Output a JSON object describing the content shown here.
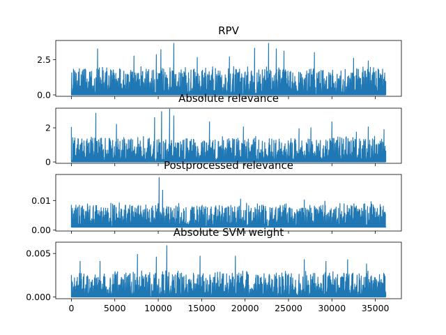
{
  "chart_data": [
    {
      "type": "line",
      "title": "RPV",
      "xlim": [
        -1800,
        38000
      ],
      "ylim": [
        -0.1,
        3.85
      ],
      "yticks": [
        0.0,
        2.5
      ],
      "ytick_labels": [
        "0.0",
        "2.5"
      ],
      "xticks": [
        0,
        5000,
        10000,
        15000,
        20000,
        25000,
        30000,
        35000
      ],
      "xtick_labels": [],
      "color": "#1f77b4",
      "x_range": [
        0,
        36200
      ],
      "baseline": 0.0,
      "typical_peak": 1.6,
      "peaks": [
        [
          3000,
          3.25
        ],
        [
          7200,
          2.75
        ],
        [
          9800,
          2.85
        ],
        [
          10300,
          3.2
        ],
        [
          11800,
          3.65
        ],
        [
          14500,
          2.65
        ],
        [
          18200,
          2.7
        ],
        [
          21100,
          3.3
        ],
        [
          22700,
          3.65
        ],
        [
          23600,
          3.25
        ],
        [
          24500,
          3.1
        ],
        [
          28000,
          3.0
        ],
        [
          32500,
          2.6
        ],
        [
          34200,
          2.4
        ]
      ]
    },
    {
      "type": "line",
      "title": "Absolute relevance",
      "xlim": [
        -1800,
        38000
      ],
      "ylim": [
        -0.08,
        3.15
      ],
      "yticks": [
        0,
        2
      ],
      "ytick_labels": [
        "0",
        "2"
      ],
      "xticks": [
        0,
        5000,
        10000,
        15000,
        20000,
        25000,
        30000,
        35000
      ],
      "xtick_labels": [],
      "color": "#1f77b4",
      "x_range": [
        0,
        36200
      ],
      "baseline": 0.0,
      "typical_peak": 1.2,
      "peaks": [
        [
          0,
          2.05
        ],
        [
          2800,
          2.85
        ],
        [
          5200,
          2.2
        ],
        [
          9600,
          2.6
        ],
        [
          10400,
          2.95
        ],
        [
          11300,
          3.1
        ],
        [
          11800,
          2.7
        ],
        [
          15900,
          2.35
        ],
        [
          19800,
          2.05
        ],
        [
          26200,
          1.95
        ],
        [
          27600,
          2.0
        ],
        [
          30000,
          2.35
        ],
        [
          32800,
          1.75
        ],
        [
          34200,
          2.05
        ],
        [
          36000,
          1.9
        ]
      ]
    },
    {
      "type": "line",
      "title": "Postprocessed relevance",
      "xlim": [
        -1800,
        38000
      ],
      "ylim": [
        -0.0003,
        0.0188
      ],
      "yticks": [
        0.0,
        0.01
      ],
      "ytick_labels": [
        "0.00",
        "0.01"
      ],
      "xticks": [
        0,
        5000,
        10000,
        15000,
        20000,
        25000,
        30000,
        35000
      ],
      "xtick_labels": [],
      "color": "#1f77b4",
      "x_range": [
        0,
        36200
      ],
      "baseline": 0.001,
      "typical_peak": 0.0075,
      "peaks": [
        [
          0,
          0.0085
        ],
        [
          5500,
          0.0092
        ],
        [
          10100,
          0.0178
        ],
        [
          10500,
          0.0135
        ],
        [
          19500,
          0.0105
        ],
        [
          26800,
          0.0102
        ],
        [
          29200,
          0.0098
        ],
        [
          34500,
          0.0096
        ]
      ]
    },
    {
      "type": "line",
      "title": "Absolute SVM weight",
      "xlim": [
        -1800,
        38000
      ],
      "ylim": [
        -0.0002,
        0.0063
      ],
      "yticks": [
        0.0,
        0.005
      ],
      "ytick_labels": [
        "0.000",
        "0.005"
      ],
      "xticks": [
        0,
        5000,
        10000,
        15000,
        20000,
        25000,
        30000,
        35000
      ],
      "xtick_labels": [
        "0",
        "5000",
        "10000",
        "15000",
        "20000",
        "25000",
        "30000",
        "35000"
      ],
      "color": "#1f77b4",
      "x_range": [
        0,
        36200
      ],
      "baseline": 0.0,
      "typical_peak": 0.0024,
      "peaks": [
        [
          1000,
          0.0041
        ],
        [
          3300,
          0.0041
        ],
        [
          7600,
          0.0049
        ],
        [
          9800,
          0.0046
        ],
        [
          11000,
          0.0059
        ],
        [
          14800,
          0.0047
        ],
        [
          18900,
          0.0047
        ],
        [
          26800,
          0.0043
        ],
        [
          29300,
          0.0041
        ],
        [
          31800,
          0.0043
        ],
        [
          34000,
          0.0038
        ]
      ]
    }
  ]
}
